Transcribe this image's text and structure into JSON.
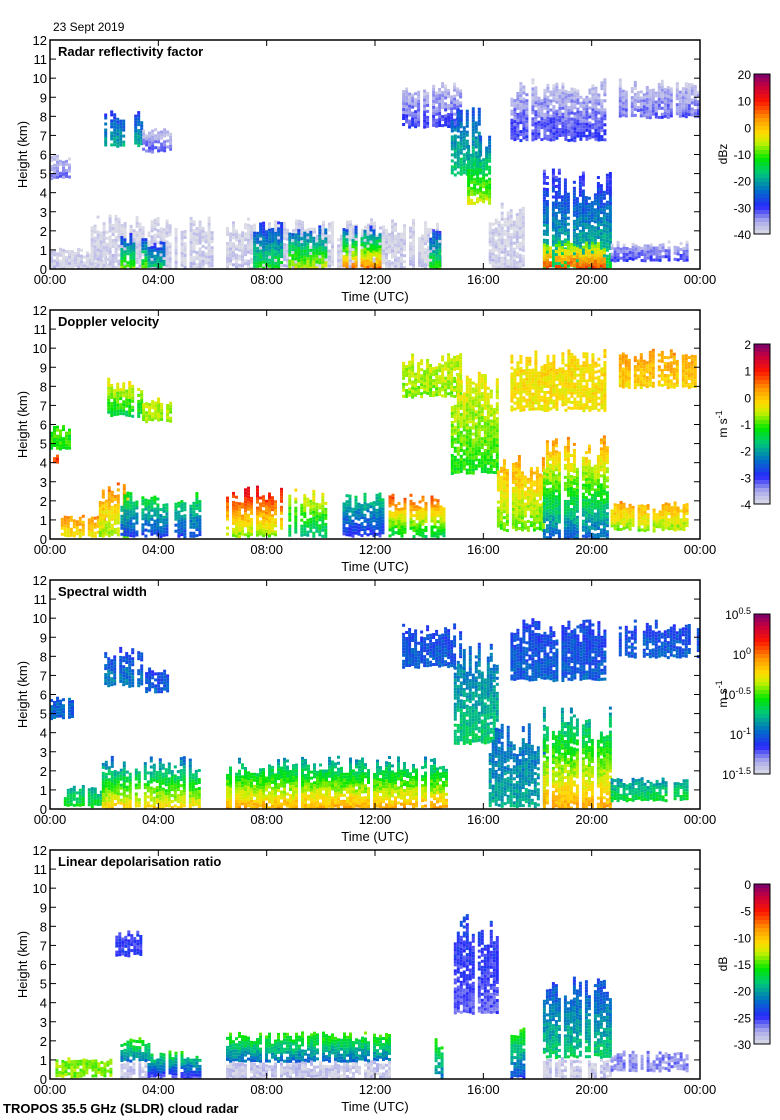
{
  "header": {
    "date": "23 Sept 2019"
  },
  "footer": {
    "instrument": "TROPOS 35.5 GHz (SLDR) cloud radar"
  },
  "chart_data": [
    {
      "type": "heatmap",
      "title": "Radar reflectivity factor",
      "xlabel": "Time (UTC)",
      "ylabel": "Height (km)",
      "xlim_hours": [
        0,
        24
      ],
      "ylim": [
        0,
        12
      ],
      "xticks": [
        "00:00",
        "04:00",
        "08:00",
        "12:00",
        "16:00",
        "20:00",
        "00:00"
      ],
      "yticks": [
        "0",
        "1",
        "2",
        "3",
        "4",
        "5",
        "6",
        "7",
        "8",
        "9",
        "10",
        "11",
        "12"
      ],
      "colorbar": {
        "label": "dBz",
        "min": -40,
        "max": 20,
        "ticks": [
          "20",
          "10",
          "0",
          "-10",
          "-20",
          "-30",
          "-40"
        ],
        "scale": "linear"
      },
      "regions": [
        {
          "t0": 0.0,
          "t1": 2.0,
          "h0": 0.1,
          "h1": 1.2,
          "v": -38,
          "vtop": -40
        },
        {
          "t0": 0.0,
          "t1": 0.8,
          "h0": 4.8,
          "h1": 6.0,
          "v": -33,
          "vtop": -38
        },
        {
          "t0": 2.0,
          "t1": 3.4,
          "h0": 6.5,
          "h1": 8.5,
          "v": -18,
          "vtop": -30
        },
        {
          "t0": 3.4,
          "t1": 4.5,
          "h0": 6.2,
          "h1": 7.5,
          "v": -32,
          "vtop": -38
        },
        {
          "t0": 1.5,
          "t1": 6.0,
          "h0": 0.1,
          "h1": 2.9,
          "v": -38,
          "vtop": -40
        },
        {
          "t0": 2.6,
          "t1": 3.5,
          "h0": 0.1,
          "h1": 1.9,
          "v": -8,
          "vtop": -30
        },
        {
          "t0": 3.6,
          "t1": 4.2,
          "h0": 0.1,
          "h1": 1.5,
          "v": -15,
          "vtop": -30
        },
        {
          "t0": 6.5,
          "t1": 14.5,
          "h0": 0.1,
          "h1": 2.7,
          "v": -38,
          "vtop": -40
        },
        {
          "t0": 7.5,
          "t1": 8.5,
          "h0": 0.1,
          "h1": 2.5,
          "v": -12,
          "vtop": -30
        },
        {
          "t0": 8.8,
          "t1": 10.2,
          "h0": 0.1,
          "h1": 2.3,
          "v": -5,
          "vtop": -28
        },
        {
          "t0": 10.8,
          "t1": 12.2,
          "h0": 0.1,
          "h1": 2.3,
          "v": 5,
          "vtop": -28
        },
        {
          "t0": 14.0,
          "t1": 14.4,
          "h0": 0.1,
          "h1": 2.2,
          "v": -10,
          "vtop": -30
        },
        {
          "t0": 13.0,
          "t1": 15.2,
          "h0": 7.5,
          "h1": 9.8,
          "v": -30,
          "vtop": -38
        },
        {
          "t0": 14.8,
          "t1": 15.8,
          "h0": 5.0,
          "h1": 8.8,
          "v": -15,
          "vtop": -28
        },
        {
          "t0": 15.4,
          "t1": 16.2,
          "h0": 3.5,
          "h1": 7.0,
          "v": -5,
          "vtop": -25
        },
        {
          "t0": 16.2,
          "t1": 17.5,
          "h0": 0.1,
          "h1": 3.5,
          "v": -38,
          "vtop": -40
        },
        {
          "t0": 18.2,
          "t1": 20.7,
          "h0": 0.1,
          "h1": 5.5,
          "v": -15,
          "vtop": -32
        },
        {
          "t0": 18.2,
          "t1": 20.5,
          "h0": 0.1,
          "h1": 1.5,
          "v": 8,
          "vtop": -10
        },
        {
          "t0": 17.0,
          "t1": 20.5,
          "h0": 6.8,
          "h1": 10.0,
          "v": -30,
          "vtop": -38
        },
        {
          "t0": 20.7,
          "t1": 23.5,
          "h0": 0.5,
          "h1": 1.5,
          "v": -30,
          "vtop": -38
        },
        {
          "t0": 21.0,
          "t1": 24.0,
          "h0": 8.0,
          "h1": 10.0,
          "v": -32,
          "vtop": -38
        }
      ]
    },
    {
      "type": "heatmap",
      "title": "Doppler velocity",
      "xlabel": "Time (UTC)",
      "ylabel": "Height (km)",
      "xlim_hours": [
        0,
        24
      ],
      "ylim": [
        0,
        12
      ],
      "xticks": [
        "00:00",
        "04:00",
        "08:00",
        "12:00",
        "16:00",
        "20:00",
        "00:00"
      ],
      "yticks": [
        "0",
        "1",
        "2",
        "3",
        "4",
        "5",
        "6",
        "7",
        "8",
        "9",
        "10",
        "11",
        "12"
      ],
      "colorbar": {
        "label": "m s-1",
        "min": -4,
        "max": 2,
        "ticks": [
          "2",
          "1",
          "0",
          "-1",
          "-2",
          "-3",
          "-4"
        ],
        "scale": "linear"
      },
      "regions": [
        {
          "t0": 0.0,
          "t1": 0.8,
          "h0": 4.8,
          "h1": 6.0,
          "v": -1.2,
          "vtop": -1.0
        },
        {
          "t0": 0.0,
          "t1": 0.3,
          "h0": 4.0,
          "h1": 4.5,
          "v": 0.8,
          "vtop": 0.8
        },
        {
          "t0": 2.0,
          "t1": 3.4,
          "h0": 6.5,
          "h1": 8.5,
          "v": -1.5,
          "vtop": -0.2
        },
        {
          "t0": 3.4,
          "t1": 4.5,
          "h0": 6.2,
          "h1": 7.5,
          "v": -0.8,
          "vtop": -0.5
        },
        {
          "t0": 0.4,
          "t1": 2.0,
          "h0": 0.2,
          "h1": 1.3,
          "v": -0.3,
          "vtop": 0.3
        },
        {
          "t0": 1.8,
          "t1": 2.8,
          "h0": 0.2,
          "h1": 3.0,
          "v": -0.8,
          "vtop": 0.5
        },
        {
          "t0": 2.6,
          "t1": 5.5,
          "h0": 0.2,
          "h1": 2.5,
          "v": -2.8,
          "vtop": -1.2
        },
        {
          "t0": 6.5,
          "t1": 8.5,
          "h0": 0.2,
          "h1": 2.8,
          "v": -0.8,
          "vtop": 1.3
        },
        {
          "t0": 8.8,
          "t1": 10.2,
          "h0": 0.2,
          "h1": 2.7,
          "v": -1.8,
          "vtop": -0.2
        },
        {
          "t0": 10.8,
          "t1": 12.3,
          "h0": 0.2,
          "h1": 2.6,
          "v": -3.0,
          "vtop": -1.5
        },
        {
          "t0": 12.5,
          "t1": 14.5,
          "h0": 0.2,
          "h1": 2.4,
          "v": -1.5,
          "vtop": 0.8
        },
        {
          "t0": 13.0,
          "t1": 15.2,
          "h0": 7.5,
          "h1": 9.8,
          "v": -0.8,
          "vtop": -0.5
        },
        {
          "t0": 14.8,
          "t1": 16.5,
          "h0": 3.5,
          "h1": 8.8,
          "v": -1.2,
          "vtop": -0.3
        },
        {
          "t0": 16.5,
          "t1": 18.2,
          "h0": 0.5,
          "h1": 4.5,
          "v": -1.0,
          "vtop": 0.3
        },
        {
          "t0": 18.2,
          "t1": 20.7,
          "h0": 0.1,
          "h1": 5.5,
          "v": -2.5,
          "vtop": 0.4
        },
        {
          "t0": 17.0,
          "t1": 20.5,
          "h0": 6.8,
          "h1": 10.0,
          "v": -0.3,
          "vtop": -0.2
        },
        {
          "t0": 20.7,
          "t1": 23.5,
          "h0": 0.5,
          "h1": 2.0,
          "v": -0.8,
          "vtop": 0.2
        },
        {
          "t0": 21.0,
          "t1": 24.0,
          "h0": 8.0,
          "h1": 10.0,
          "v": -0.2,
          "vtop": 0.3
        }
      ]
    },
    {
      "type": "heatmap",
      "title": "Spectral width",
      "xlabel": "Time (UTC)",
      "ylabel": "Height (km)",
      "xlim_hours": [
        0,
        24
      ],
      "ylim": [
        0,
        12
      ],
      "xticks": [
        "00:00",
        "04:00",
        "08:00",
        "12:00",
        "16:00",
        "20:00",
        "00:00"
      ],
      "yticks": [
        "0",
        "1",
        "2",
        "3",
        "4",
        "5",
        "6",
        "7",
        "8",
        "9",
        "10",
        "11",
        "12"
      ],
      "colorbar": {
        "label": "m s-1",
        "min_exp": -1.5,
        "max_exp": 0.5,
        "ticks": [
          "10^0.5",
          "10^0",
          "10^-0.5",
          "10^-1",
          "10^-1.5"
        ],
        "scale": "log10"
      },
      "regions": [
        {
          "t0": 0.0,
          "t1": 0.8,
          "h0": 4.8,
          "h1": 6.0,
          "v": -1.0,
          "vtop": -1.0
        },
        {
          "t0": 2.0,
          "t1": 3.4,
          "h0": 6.5,
          "h1": 8.5,
          "v": -0.9,
          "vtop": -1.1
        },
        {
          "t0": 3.4,
          "t1": 4.5,
          "h0": 6.2,
          "h1": 7.5,
          "v": -1.0,
          "vtop": -1.1
        },
        {
          "t0": 0.4,
          "t1": 2.0,
          "h0": 0.2,
          "h1": 1.3,
          "v": -0.6,
          "vtop": -0.8
        },
        {
          "t0": 1.8,
          "t1": 5.5,
          "h0": 0.1,
          "h1": 2.8,
          "v": -0.2,
          "vtop": -1.0
        },
        {
          "t0": 6.5,
          "t1": 14.6,
          "h0": 0.1,
          "h1": 2.8,
          "v": -0.1,
          "vtop": -0.9
        },
        {
          "t0": 13.0,
          "t1": 15.2,
          "h0": 7.5,
          "h1": 9.8,
          "v": -1.0,
          "vtop": -1.1
        },
        {
          "t0": 14.8,
          "t1": 16.5,
          "h0": 3.5,
          "h1": 8.8,
          "v": -0.7,
          "vtop": -1.0
        },
        {
          "t0": 16.2,
          "t1": 18.2,
          "h0": 0.2,
          "h1": 4.5,
          "v": -0.8,
          "vtop": -1.0
        },
        {
          "t0": 18.2,
          "t1": 20.7,
          "h0": 0.1,
          "h1": 5.5,
          "v": -0.1,
          "vtop": -0.9
        },
        {
          "t0": 17.0,
          "t1": 20.5,
          "h0": 6.8,
          "h1": 10.0,
          "v": -1.0,
          "vtop": -1.1
        },
        {
          "t0": 20.7,
          "t1": 23.5,
          "h0": 0.5,
          "h1": 1.7,
          "v": -0.6,
          "vtop": -0.9
        },
        {
          "t0": 21.0,
          "t1": 24.0,
          "h0": 8.0,
          "h1": 10.0,
          "v": -1.0,
          "vtop": -1.1
        }
      ]
    },
    {
      "type": "heatmap",
      "title": "Linear depolarisation ratio",
      "xlabel": "Time (UTC)",
      "ylabel": "Height (km)",
      "xlim_hours": [
        0,
        24
      ],
      "ylim": [
        0,
        12
      ],
      "xticks": [
        "00:00",
        "04:00",
        "08:00",
        "12:00",
        "16:00",
        "20:00",
        "00:00"
      ],
      "yticks": [
        "0",
        "1",
        "2",
        "3",
        "4",
        "5",
        "6",
        "7",
        "8",
        "9",
        "10",
        "11",
        "12"
      ],
      "colorbar": {
        "label": "dB",
        "min": -30,
        "max": 0,
        "ticks": [
          "0",
          "-5",
          "-10",
          "-15",
          "-20",
          "-25",
          "-30"
        ],
        "scale": "linear"
      },
      "regions": [
        {
          "t0": 0.2,
          "t1": 2.2,
          "h0": 0.2,
          "h1": 1.2,
          "v": -14,
          "vtop": -14
        },
        {
          "t0": 2.6,
          "t1": 3.6,
          "h0": 0.1,
          "h1": 1.0,
          "v": -29,
          "vtop": -29
        },
        {
          "t0": 2.6,
          "t1": 3.6,
          "h0": 1.0,
          "h1": 2.2,
          "v": -22,
          "vtop": -15
        },
        {
          "t0": 2.3,
          "t1": 3.4,
          "h0": 6.5,
          "h1": 7.8,
          "v": -25,
          "vtop": -25
        },
        {
          "t0": 3.6,
          "t1": 5.5,
          "h0": 0.1,
          "h1": 1.5,
          "v": -26,
          "vtop": -16
        },
        {
          "t0": 6.5,
          "t1": 12.5,
          "h0": 0.1,
          "h1": 1.0,
          "v": -29,
          "vtop": -29
        },
        {
          "t0": 6.5,
          "t1": 12.5,
          "h0": 1.0,
          "h1": 2.5,
          "v": -22,
          "vtop": -15
        },
        {
          "t0": 14.2,
          "t1": 14.5,
          "h0": 0.1,
          "h1": 2.2,
          "v": -22,
          "vtop": -15
        },
        {
          "t0": 14.8,
          "t1": 16.5,
          "h0": 3.5,
          "h1": 8.8,
          "v": -26,
          "vtop": -24
        },
        {
          "t0": 17.0,
          "t1": 17.5,
          "h0": 0.1,
          "h1": 3.0,
          "v": -24,
          "vtop": -14
        },
        {
          "t0": 18.2,
          "t1": 20.7,
          "h0": 0.1,
          "h1": 1.2,
          "v": -29,
          "vtop": -29
        },
        {
          "t0": 18.2,
          "t1": 20.7,
          "h0": 1.2,
          "h1": 5.5,
          "v": -18,
          "vtop": -24
        },
        {
          "t0": 20.7,
          "t1": 23.5,
          "h0": 0.5,
          "h1": 1.5,
          "v": -27,
          "vtop": -27
        }
      ]
    }
  ]
}
